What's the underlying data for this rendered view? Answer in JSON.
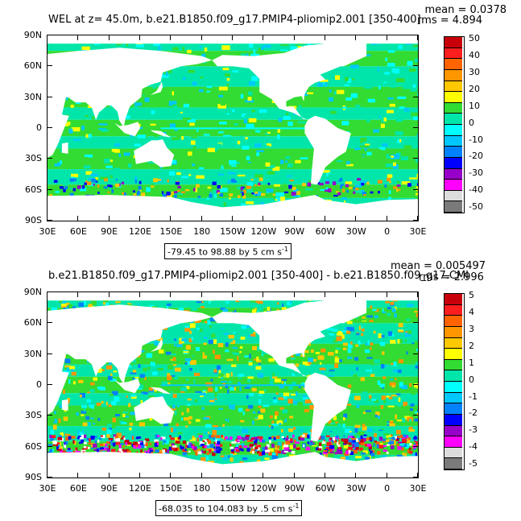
{
  "panels": [
    {
      "title": "WEL at z=  45.0m, b.e21.B1850.f09_g17.PMIP4-pliomip2.001 [350-400]",
      "mean": "mean = 0.0378",
      "rms": "rms = 4.894",
      "range": "-79.45 to 98.88 by 5 cm s",
      "range_exp": "-1",
      "colorbar": [
        "50",
        "40",
        "30",
        "20",
        "10",
        "0",
        "-10",
        "-20",
        "-30",
        "-40",
        "-50"
      ]
    },
    {
      "title": "b.e21.B1850.f09_g17.PMIP4-pliomip2.001 [350-400] - b.e21.B1850.f09_g17.CMI",
      "mean": "mean = 0.005497",
      "rms": "rms = 2.996",
      "range": "-68.035 to 104.083 by .5 cm s",
      "range_exp": "-1",
      "colorbar": [
        "5",
        "4",
        "3",
        "2",
        "1",
        "0",
        "-1",
        "-2",
        "-3",
        "-4",
        "-5"
      ]
    }
  ],
  "y_ticks": [
    "90N",
    "60N",
    "30N",
    "0",
    "30S",
    "60S",
    "90S"
  ],
  "x_ticks": [
    "30E",
    "60E",
    "90E",
    "120E",
    "150E",
    "180",
    "150W",
    "120W",
    "90W",
    "60W",
    "30W",
    "0",
    "30E"
  ],
  "colorbar_colors": [
    "#c8000a",
    "#ff1e1e",
    "#ff6400",
    "#ff9600",
    "#ffc800",
    "#ffff00",
    "#32dc32",
    "#00e6aa",
    "#00ffff",
    "#00c8ff",
    "#0082ff",
    "#0000ff",
    "#9600c8",
    "#ff00ff",
    "#dcdcdc",
    "#7a7a7a"
  ]
}
